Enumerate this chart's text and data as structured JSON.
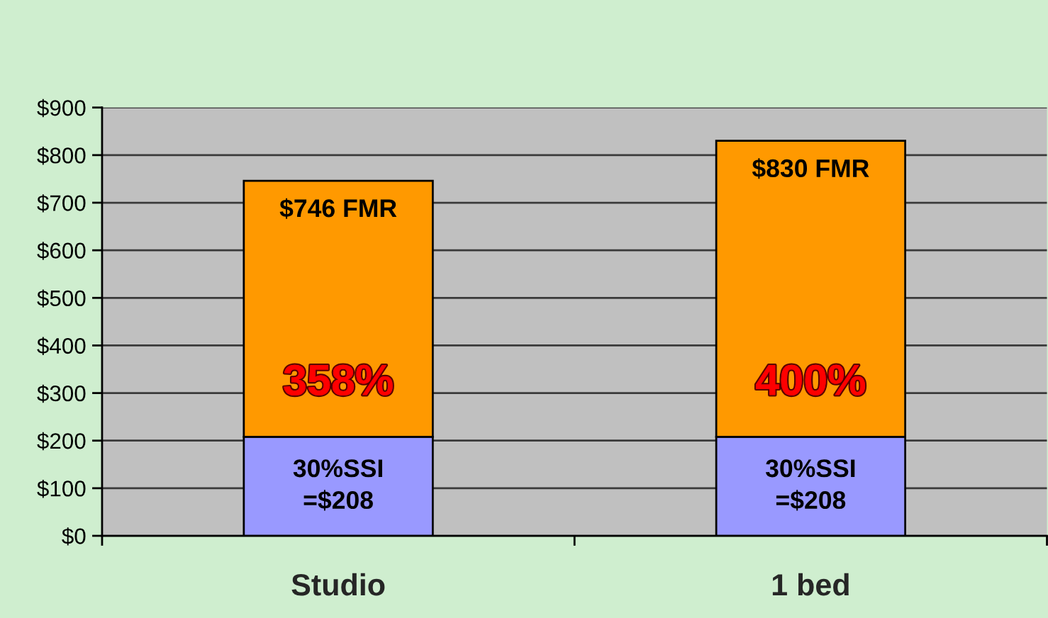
{
  "chart_data": {
    "type": "bar",
    "stacked": true,
    "categories": [
      "Studio",
      "1 bed"
    ],
    "series": [
      {
        "color": "#9999ff",
        "values": [
          208,
          208
        ],
        "value_labels": [
          "30%SSI\n=$208",
          "30%SSI\n=$208"
        ]
      },
      {
        "color": "#ff9900",
        "values": [
          538,
          622
        ]
      }
    ],
    "totals": [
      "$746 FMR",
      "$830 FMR"
    ],
    "ylim": [
      0,
      900
    ],
    "yticks": [
      {
        "value": 0,
        "label": "$0"
      },
      {
        "value": 100,
        "label": "$100"
      },
      {
        "value": 200,
        "label": "$200"
      },
      {
        "value": 300,
        "label": "$300"
      },
      {
        "value": 400,
        "label": "$400"
      },
      {
        "value": 500,
        "label": "$500"
      },
      {
        "value": 600,
        "label": "$600"
      },
      {
        "value": 700,
        "label": "$700"
      },
      {
        "value": 800,
        "label": "$800"
      },
      {
        "value": 900,
        "label": "$900"
      }
    ],
    "grid": "y",
    "annotations": [
      "358%",
      "400%"
    ]
  }
}
